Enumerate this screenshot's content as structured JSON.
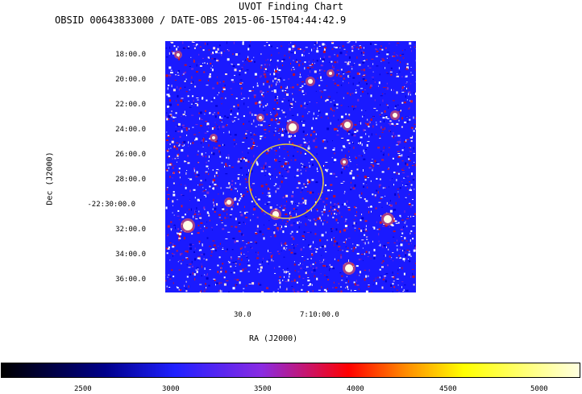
{
  "title": "UVOT Finding Chart",
  "subtitle": "OBSID 00643833000 / DATE-OBS 2015-06-15T04:44:42.9",
  "axes": {
    "ylabel": "Dec  (J2000)",
    "xlabel": "RA  (J2000)",
    "yticks": [
      "18:00.0",
      "20:00.0",
      "22:00.0",
      "24:00.0",
      "26:00.0",
      "28:00.0",
      "-22:30:00.0",
      "32:00.0",
      "34:00.0",
      "36:00.0"
    ],
    "xticks": [
      "30.0",
      "7:10:00.0"
    ]
  },
  "colorbar": {
    "ticks": [
      "2500",
      "3000",
      "3500",
      "4000",
      "4500",
      "5000"
    ]
  },
  "colors": {
    "background": "#1a1aff",
    "circle": "#e8c838"
  }
}
